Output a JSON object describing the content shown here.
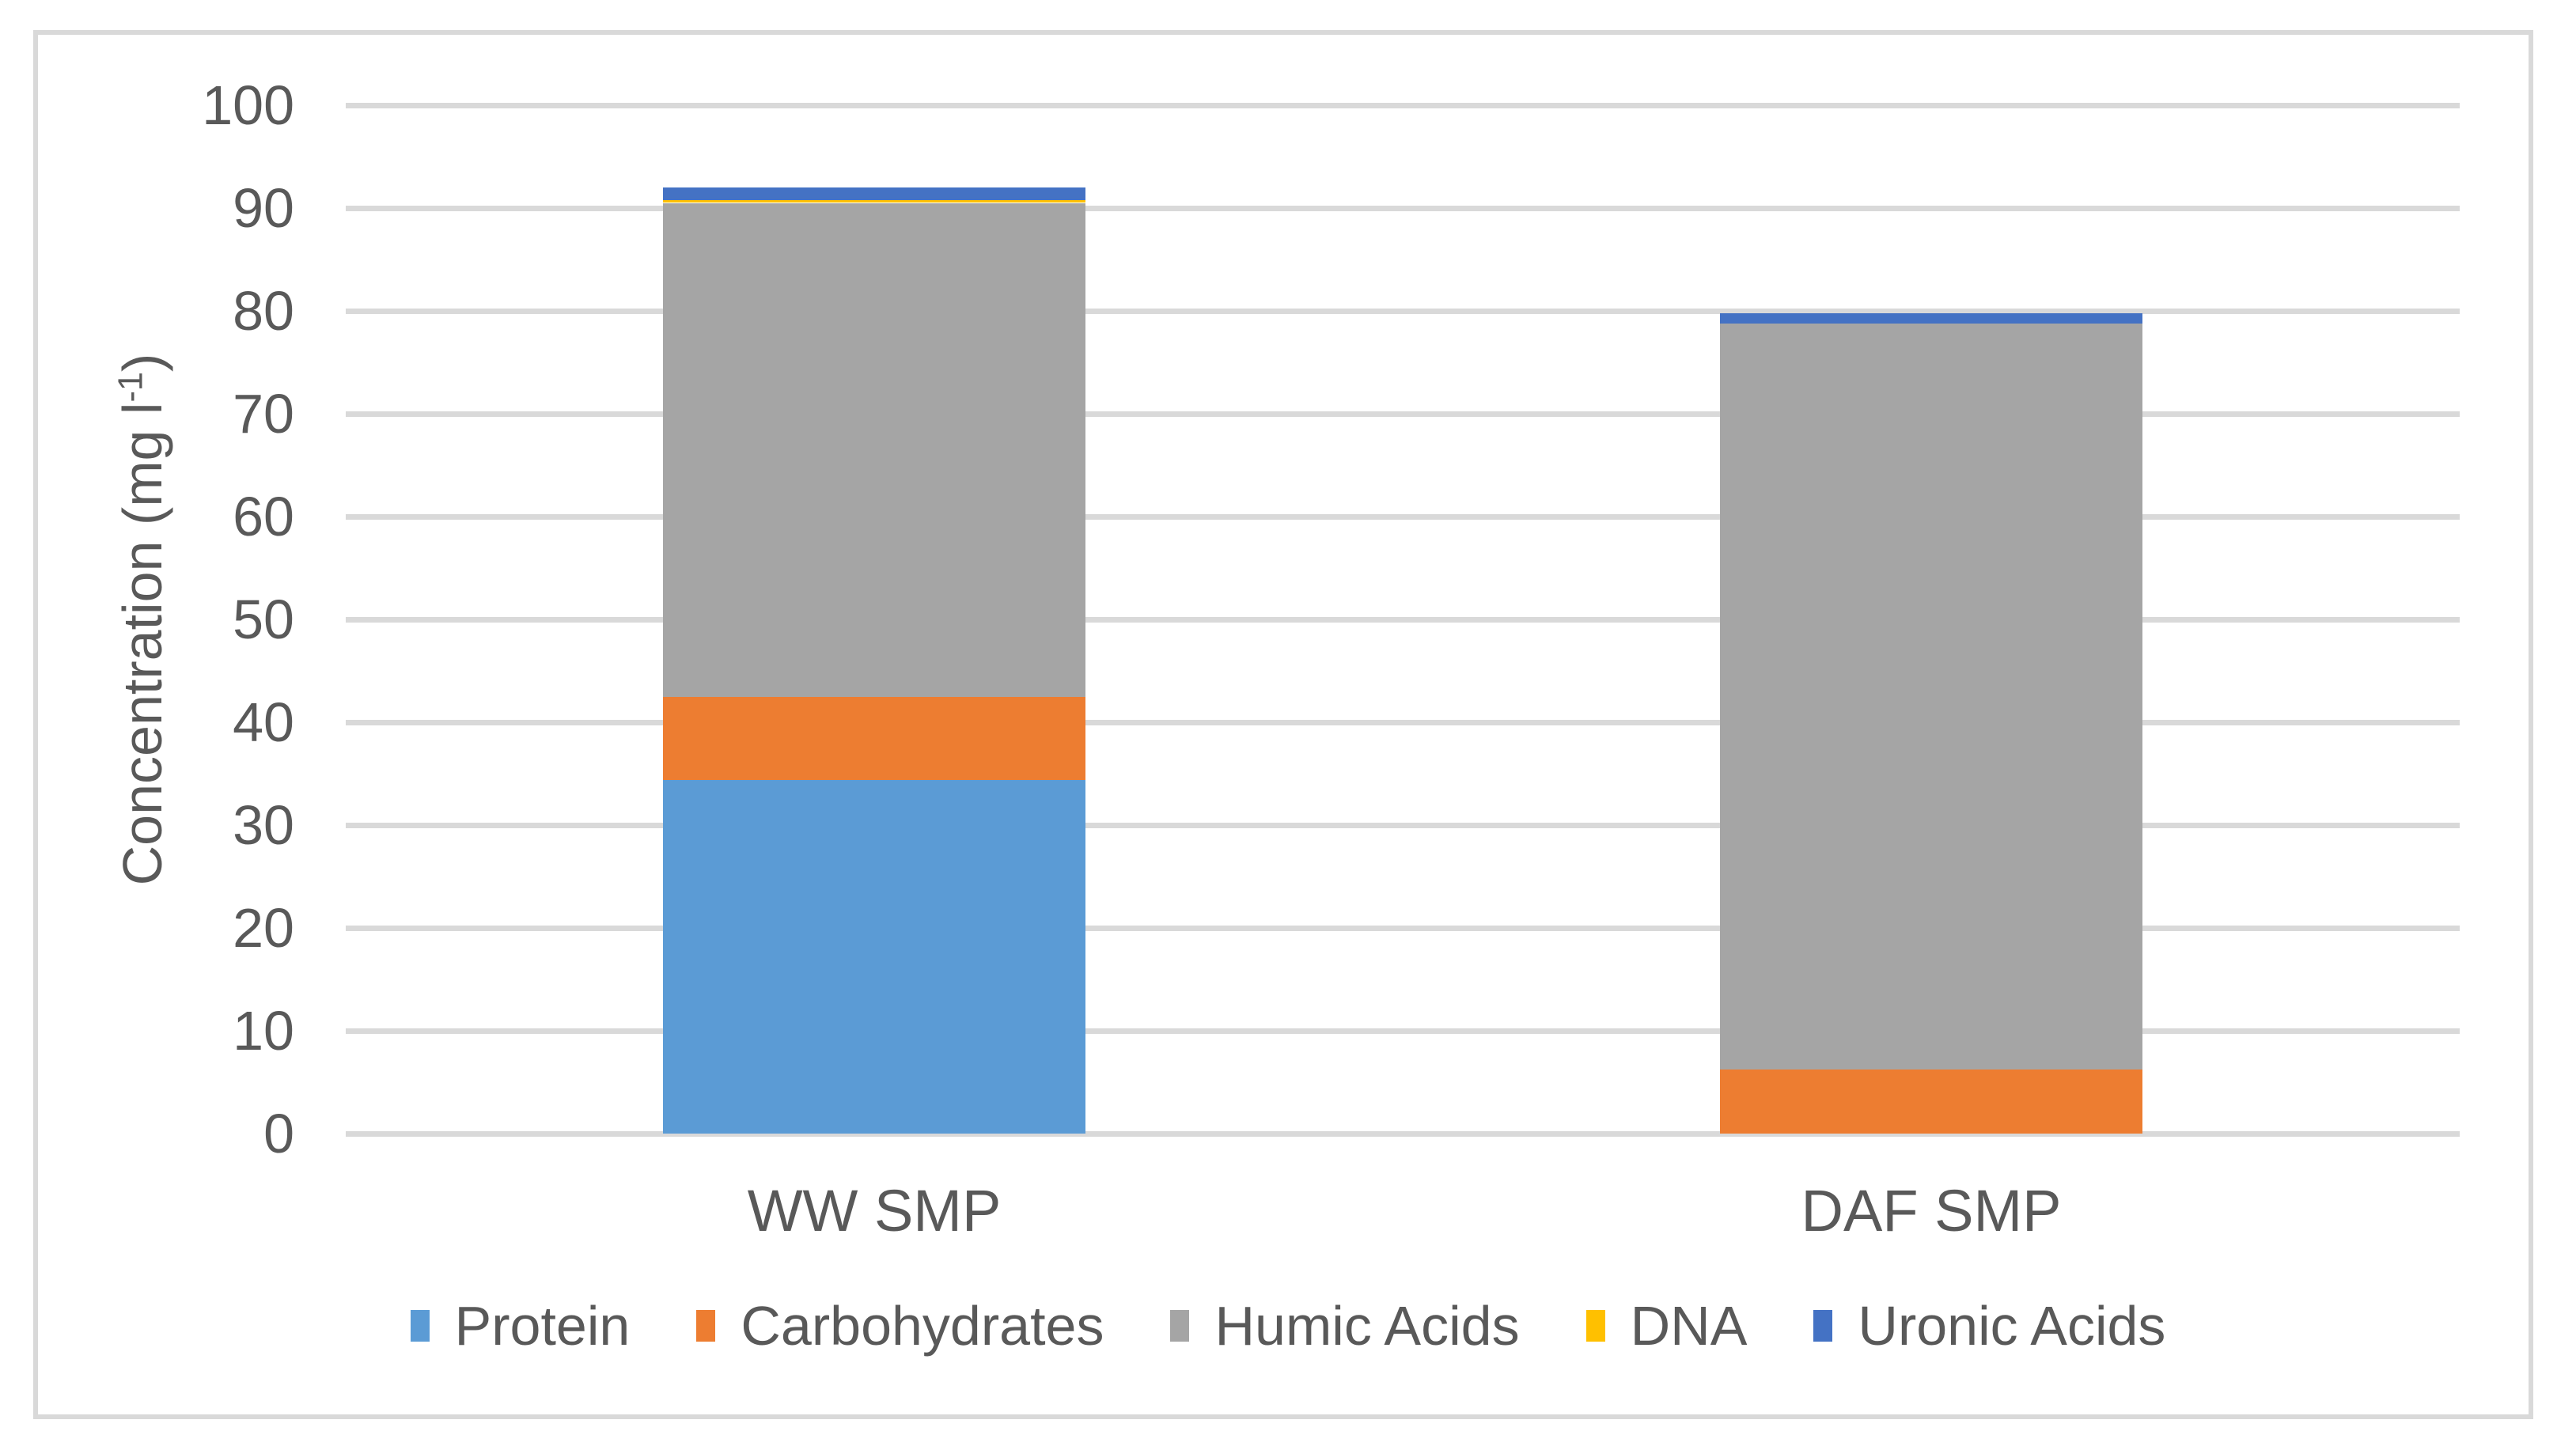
{
  "colors": {
    "background": "#FFFFFF",
    "frame_border": "#D9D9D9",
    "gridline": "#D9D9D9",
    "axis_text": "#595959"
  },
  "y_axis": {
    "title_full": "Concentration (mg l⁻¹)",
    "title_main": "Concentration (mg l",
    "title_sup": "-1",
    "title_close": ")"
  },
  "chart_data": {
    "type": "bar",
    "stacked": true,
    "title": "",
    "categories": [
      "WW SMP",
      "DAF SMP"
    ],
    "series": [
      {
        "name": "Protein",
        "color": "#5B9BD5",
        "values": [
          34.4,
          0
        ]
      },
      {
        "name": "Carbohydrates",
        "color": "#ED7D31",
        "values": [
          8.1,
          6.2
        ]
      },
      {
        "name": "Humic Acids",
        "color": "#A5A5A5",
        "values": [
          48.0,
          72.6
        ]
      },
      {
        "name": "DNA",
        "color": "#FFC000",
        "values": [
          0.3,
          0
        ]
      },
      {
        "name": "Uronic Acids",
        "color": "#4472C4",
        "values": [
          1.2,
          1.0
        ]
      }
    ],
    "xlabel": "",
    "ylabel": "Concentration (mg l⁻¹)",
    "ylim": [
      0,
      100
    ],
    "yticks": [
      0,
      10,
      20,
      30,
      40,
      50,
      60,
      70,
      80,
      90,
      100
    ],
    "grid": true,
    "legend_position": "bottom"
  }
}
